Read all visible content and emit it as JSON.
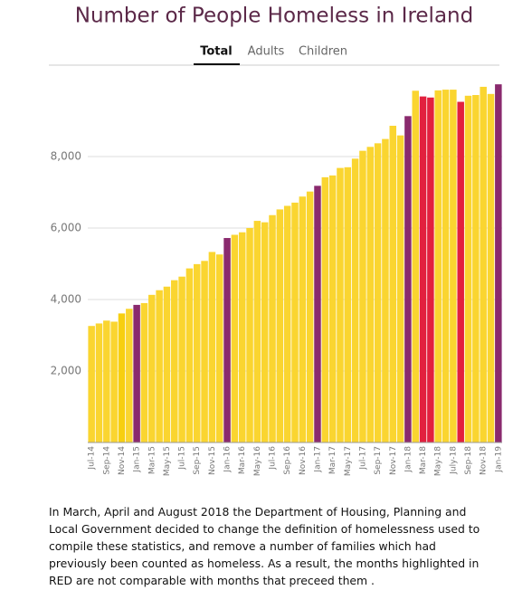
{
  "chart_data": {
    "type": "bar",
    "title": "Number of People Homeless in Ireland",
    "tabs": [
      "Total",
      "Adults",
      "Children"
    ],
    "categories": [
      "Jul-14",
      null,
      "Sep-14",
      null,
      "Nov-14",
      null,
      "Jan-15",
      null,
      "Mar-15",
      null,
      "May-15",
      null,
      "Jul-15",
      null,
      "Sep-15",
      null,
      "Nov-15",
      null,
      "Jan-16",
      null,
      "Mar-16",
      null,
      "May-16",
      null,
      "Jul-16",
      null,
      "Sep-16",
      null,
      "Nov-16",
      null,
      "Jan-17",
      null,
      "Mar-17",
      null,
      "May-17",
      null,
      "Jul-17",
      null,
      "Sep-17",
      null,
      "Nov-17",
      null,
      "Jan-18",
      null,
      "Mar-18",
      null,
      "May-18",
      null,
      "July-18",
      null,
      "Sep-18",
      null,
      "Nov-18",
      null,
      "Jan-19"
    ],
    "values": [
      3260,
      3330,
      3410,
      3380,
      3610,
      3740,
      3850,
      3900,
      4130,
      4260,
      4360,
      4540,
      4640,
      4870,
      4990,
      5080,
      5330,
      5260,
      5720,
      5810,
      5880,
      6000,
      6200,
      6160,
      6360,
      6520,
      6620,
      6710,
      6880,
      7020,
      7180,
      7420,
      7470,
      7680,
      7700,
      7940,
      8160,
      8270,
      8370,
      8490,
      8860,
      8590,
      9130,
      9840,
      9680,
      9650,
      9850,
      9870,
      9870,
      9530,
      9700,
      9720,
      9950,
      9750,
      10020
    ],
    "colors": [
      "#fad530",
      "#fad530",
      "#fad530",
      "#fad530",
      "#f7cf10",
      "#fad530",
      "#8a2a6e",
      "#fad530",
      "#fad530",
      "#fad530",
      "#fad530",
      "#fad530",
      "#fad530",
      "#fad530",
      "#fad530",
      "#fad530",
      "#fad530",
      "#fad530",
      "#8a2a6e",
      "#fad530",
      "#fad530",
      "#fad530",
      "#fad530",
      "#fad530",
      "#fad530",
      "#fad530",
      "#fad530",
      "#fad530",
      "#fad530",
      "#fad530",
      "#8a2a6e",
      "#fad530",
      "#fad530",
      "#fad530",
      "#fad530",
      "#fad530",
      "#fad530",
      "#fad530",
      "#fad530",
      "#fad530",
      "#fad530",
      "#fad530",
      "#8a2a6e",
      "#fad530",
      "#e2203e",
      "#e2203e",
      "#fad530",
      "#fad530",
      "#fad530",
      "#e2203e",
      "#fad530",
      "#fad530",
      "#fad530",
      "#fad530",
      "#8a2a6e"
    ],
    "ylim": [
      0,
      10100
    ],
    "yticks": [
      {
        "value": 2000,
        "label": "2,000"
      },
      {
        "value": 4000,
        "label": "4,000"
      },
      {
        "value": 6000,
        "label": "6,000"
      },
      {
        "value": 8000,
        "label": "8,000"
      }
    ],
    "grid": true,
    "note": "In March, April and August 2018 the Department of Housing, Planning and Local Government decided to change the definition of homelessness used to compile these statistics, and remove a number of families which had previously been counted as homeless. As a result, the months highlighted in RED are not comparable with months that preceed them ."
  }
}
